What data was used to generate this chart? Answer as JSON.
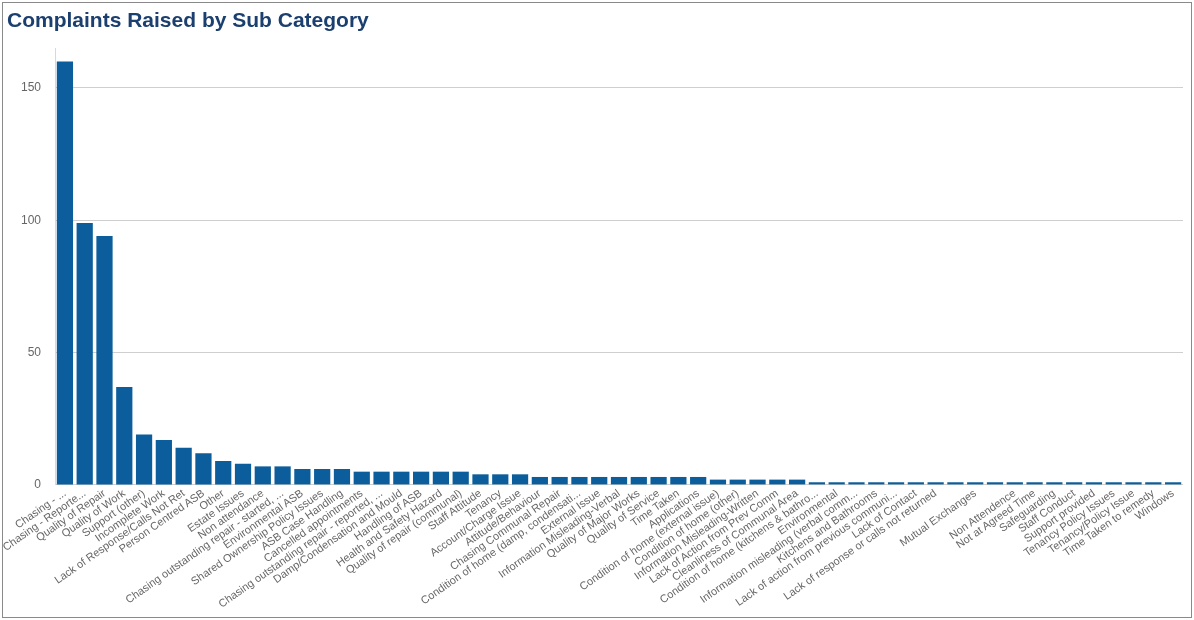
{
  "chart_data": {
    "type": "bar",
    "title": "Complaints Raised by Sub Category",
    "categories": [
      "Chasing - ...",
      "Chasing - Reporte...",
      "Quality of Repair",
      "Quality of Work",
      "Support (other)",
      "Incomplete Work",
      "Lack of Response/Calls Not Ret",
      "Person Centred ASB",
      "Other",
      "Estate Issues",
      "Non attendance",
      "Chasing outstanding repair - started, ...",
      "Environmental ASB",
      "Shared Ownership Policy Issues",
      "ASB Case Handling",
      "Cancelled appointments",
      "Chasing outstanding repair - reported, ...",
      "Damp/Condensation and Mould",
      "Handling of ASB",
      "Health and Safety Hazard",
      "Quality of repair (communal)",
      "Staff Attitude",
      "Tenancy",
      "Account/Charge Issue",
      "Attitude/Behaviour",
      "Chasing Communal Repair",
      "Condition of home (damp, condensati...",
      "External Issue",
      "Information Misleading-Verbal",
      "Quality of Major Works",
      "Quality of Service",
      "Time Taken",
      "Applications",
      "Condition of home (external issue)",
      "Condition of home (other)",
      "Information Misleading-Written",
      "Lack of Action from Prev Comm",
      "Cleanliness of Communal Area",
      "Condition of home (kitchens & bathro...",
      "Environmental",
      "Information misleading (verbal comm...",
      "Kitchens and Bathrooms",
      "Lack of action from previous communi...",
      "Lack of Contact",
      "Lack of response or calls not returned",
      null,
      "Mutual Exchanges",
      null,
      "Non Attendence",
      "Not at Agreed Time",
      "Safeguarding",
      "Staff Conduct",
      "Support provided",
      "Tenancy Policy Issues",
      "Tenancy/Policy Issue",
      "Time Taken to remedy",
      "Windows"
    ],
    "values": [
      160,
      99,
      94,
      37,
      19,
      17,
      14,
      12,
      9,
      8,
      7,
      7,
      6,
      6,
      6,
      5,
      5,
      5,
      5,
      5,
      5,
      4,
      4,
      4,
      3,
      3,
      3,
      3,
      3,
      3,
      3,
      3,
      3,
      2,
      2,
      2,
      2,
      2,
      1,
      1,
      1,
      1,
      1,
      1,
      1,
      1,
      1,
      1,
      1,
      1,
      1,
      1,
      1,
      1,
      1,
      1,
      1
    ],
    "color": "#0b5e9b",
    "ylim": [
      0,
      165
    ],
    "yticks": [
      0,
      50,
      100,
      150
    ],
    "grid": "y",
    "legend": false
  }
}
